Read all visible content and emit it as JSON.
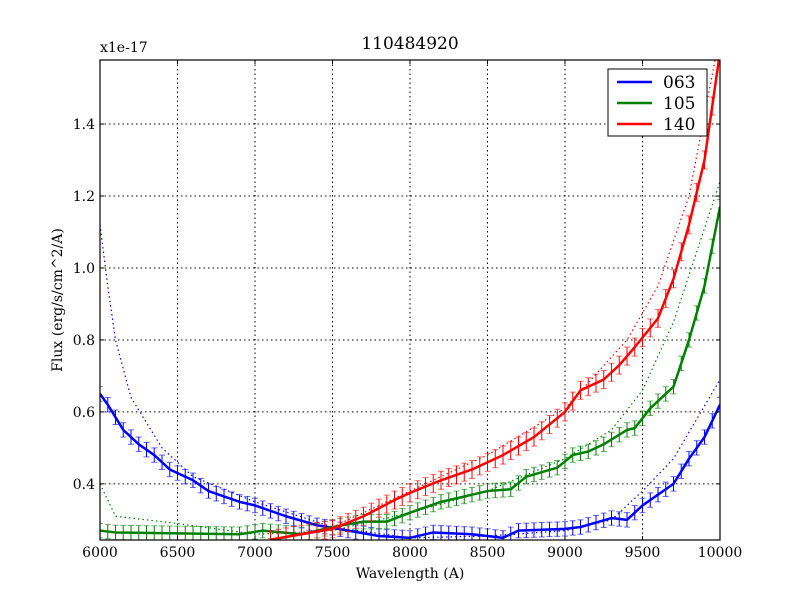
{
  "chart_data": {
    "type": "line",
    "title": "110484920",
    "xlabel": "Wavelength (A)",
    "ylabel": "Flux (erg/s/cm^2/A)",
    "y_offset_label": "x1e-17",
    "xlim": [
      6000,
      10000
    ],
    "ylim": [
      0.244,
      1.578
    ],
    "xticks": [
      6000,
      6500,
      7000,
      7500,
      8000,
      8500,
      9000,
      9500,
      10000
    ],
    "yticks": [
      0.4,
      0.6,
      0.8,
      1.0,
      1.2,
      1.4
    ],
    "ytick_labels": [
      "0.4",
      "0.6",
      "0.8",
      "1.0",
      "1.2",
      "1.4"
    ],
    "grid": true,
    "legend_position": "top-right",
    "series": [
      {
        "name": "063",
        "color": "#0000ff",
        "x": [
          6000,
          6050,
          6150,
          6250,
          6350,
          6450,
          6600,
          6700,
          6900,
          7000,
          7200,
          7400,
          7600,
          7800,
          8000,
          8150,
          8400,
          8600,
          8700,
          9000,
          9100,
          9300,
          9400,
          9500,
          9700,
          9800,
          9900,
          10000
        ],
        "y": [
          0.65,
          0.62,
          0.55,
          0.51,
          0.48,
          0.44,
          0.41,
          0.38,
          0.35,
          0.34,
          0.31,
          0.285,
          0.27,
          0.255,
          0.25,
          0.265,
          0.26,
          0.25,
          0.27,
          0.275,
          0.28,
          0.305,
          0.3,
          0.34,
          0.4,
          0.47,
          0.53,
          0.62
        ],
        "error": 0.02,
        "model_x": [
          6000,
          6050,
          6100,
          6200,
          6400,
          6600,
          7000,
          7500,
          8000,
          8500,
          9000,
          9300,
          9500,
          9700,
          10000
        ],
        "model_y": [
          1.12,
          0.95,
          0.8,
          0.64,
          0.5,
          0.42,
          0.35,
          0.28,
          0.25,
          0.255,
          0.27,
          0.3,
          0.38,
          0.47,
          0.69
        ]
      },
      {
        "name": "105",
        "color": "#008000",
        "x": [
          6000,
          6100,
          6900,
          7050,
          7300,
          7500,
          7700,
          7850,
          8000,
          8200,
          8400,
          8500,
          8650,
          8750,
          8950,
          9050,
          9150,
          9250,
          9400,
          9450,
          9550,
          9700,
          9800,
          9900,
          10000
        ],
        "y": [
          0.27,
          0.265,
          0.26,
          0.27,
          0.26,
          0.28,
          0.295,
          0.295,
          0.32,
          0.35,
          0.37,
          0.38,
          0.385,
          0.42,
          0.445,
          0.48,
          0.49,
          0.51,
          0.55,
          0.555,
          0.61,
          0.67,
          0.8,
          0.95,
          1.17
        ],
        "error": 0.02,
        "model_x": [
          6000,
          6100,
          6500,
          7000,
          7500,
          8000,
          8500,
          9000,
          9300,
          9500,
          9700,
          10000
        ],
        "model_y": [
          0.4,
          0.31,
          0.29,
          0.26,
          0.27,
          0.32,
          0.38,
          0.47,
          0.55,
          0.66,
          0.85,
          1.24
        ]
      },
      {
        "name": "140",
        "color": "#ff0000",
        "x": [
          7100,
          7300,
          7500,
          7700,
          7900,
          8000,
          8200,
          8400,
          8600,
          8800,
          9000,
          9100,
          9250,
          9350,
          9450,
          9600,
          9700,
          9800,
          9900,
          10000
        ],
        "y": [
          0.245,
          0.26,
          0.275,
          0.31,
          0.355,
          0.375,
          0.41,
          0.44,
          0.48,
          0.53,
          0.6,
          0.66,
          0.69,
          0.73,
          0.78,
          0.86,
          0.97,
          1.12,
          1.3,
          1.6
        ],
        "error": 0.025,
        "model_x": [
          7100,
          7500,
          8000,
          8500,
          9000,
          9400,
          9600,
          9800,
          10000
        ],
        "model_y": [
          0.245,
          0.28,
          0.38,
          0.48,
          0.61,
          0.8,
          0.95,
          1.2,
          1.65
        ]
      }
    ]
  }
}
